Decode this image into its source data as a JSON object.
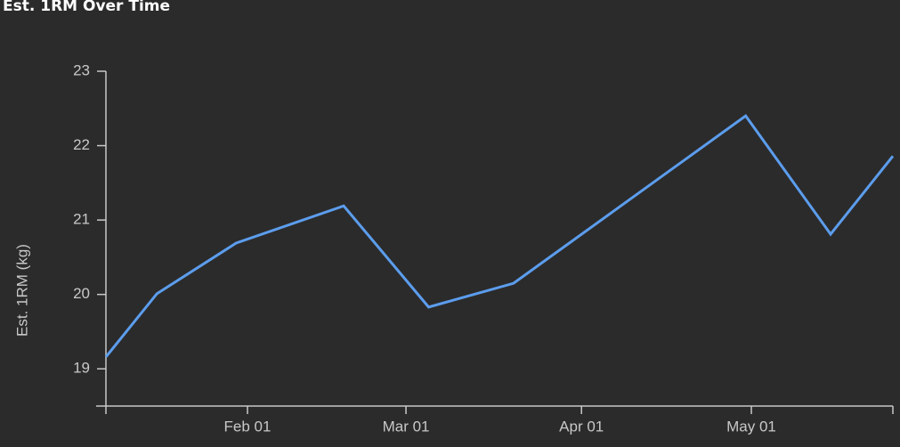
{
  "chart_data": {
    "type": "line",
    "title": "Est. 1RM Over Time",
    "y_label": "Est. 1RM (kg)",
    "x": [
      "01-07",
      "01-16",
      "01-30",
      "02-18",
      "03-05",
      "03-20",
      "04-30",
      "05-15",
      "05-26"
    ],
    "series": [
      {
        "name": "Est. 1RM",
        "color": "#5c9ded",
        "values": [
          19.16,
          20.01,
          20.69,
          21.19,
          19.83,
          20.15,
          22.4,
          20.81,
          21.86
        ]
      }
    ],
    "xlim": [
      "01-07",
      "05-26"
    ],
    "xticks": [
      {
        "value": "02-01",
        "label": "Feb 01"
      },
      {
        "value": "03-01",
        "label": "Mar 01"
      },
      {
        "value": "04-01",
        "label": "Apr 01"
      },
      {
        "value": "05-01",
        "label": "May 01"
      }
    ],
    "ylim": [
      18.5,
      23
    ],
    "yticks": [
      19,
      20,
      21,
      22,
      23
    ],
    "grid": false
  }
}
